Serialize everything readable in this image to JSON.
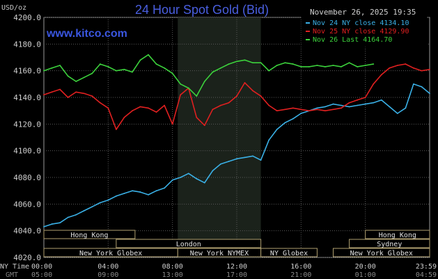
{
  "chart_data": {
    "type": "line",
    "title": "24 Hour Spot Gold (Bid)",
    "unit_label": "USD/oz",
    "watermark": "www.kitco.com",
    "timestamp": "November 26, 2025 19:35",
    "ylim": [
      4020,
      4200
    ],
    "yticks": [
      "4200.0",
      "4180.0",
      "4160.0",
      "4140.0",
      "4120.0",
      "4100.0",
      "4080.0",
      "4060.0",
      "4040.0",
      "4020.0"
    ],
    "xlim": [
      0,
      24
    ],
    "xticks": {
      "ny_label": "NY Time",
      "gmt_label": "GMT",
      "ny": [
        "00:00",
        "04:00",
        "08:00",
        "12:00",
        "16:00",
        "20:00",
        "23:59"
      ],
      "gmt": [
        "05:00",
        "09:00",
        "13:00",
        "17:00",
        "21:00",
        "01:00",
        "04:59"
      ]
    },
    "shaded_session_hours": [
      8.33,
      13.5
    ],
    "series": [
      {
        "name": "Nov 24 NY close 4134.10",
        "color": "#3ab0e6",
        "x": [
          0,
          0.5,
          1,
          1.5,
          2,
          2.5,
          3,
          3.5,
          4,
          4.5,
          5,
          5.5,
          6,
          6.5,
          7,
          7.5,
          8,
          8.5,
          9,
          9.5,
          10,
          10.5,
          11,
          11.5,
          12,
          12.5,
          13,
          13.5,
          14,
          14.5,
          15,
          15.5,
          16,
          16.5,
          17,
          17.5,
          18,
          18.5,
          19,
          19.5,
          20,
          20.5,
          21,
          21.5,
          22,
          22.5,
          23,
          23.5,
          24
        ],
        "y": [
          4043,
          4045,
          4046,
          4050,
          4052,
          4055,
          4058,
          4061,
          4063,
          4066,
          4068,
          4070,
          4069,
          4067,
          4070,
          4072,
          4078,
          4080,
          4083,
          4079,
          4076,
          4085,
          4090,
          4092,
          4094,
          4095,
          4096,
          4093,
          4108,
          4116,
          4121,
          4124,
          4128,
          4130,
          4132,
          4133,
          4135,
          4134,
          4133,
          4134,
          4135,
          4136,
          4138,
          4133,
          4128,
          4132,
          4150,
          4148,
          4143
        ]
      },
      {
        "name": "Nov 25 NY close 4129.90",
        "color": "#e02020",
        "x": [
          0,
          0.5,
          1,
          1.5,
          2,
          2.5,
          3,
          3.5,
          4,
          4.5,
          5,
          5.5,
          6,
          6.5,
          7,
          7.5,
          8,
          8.5,
          9,
          9.5,
          10,
          10.5,
          11,
          11.5,
          12,
          12.5,
          13,
          13.5,
          14,
          14.5,
          15,
          15.5,
          16,
          16.5,
          17,
          17.5,
          18,
          18.5,
          19,
          19.5,
          20,
          20.5,
          21,
          21.5,
          22,
          22.5,
          23,
          23.5,
          24
        ],
        "y": [
          4142,
          4144,
          4146,
          4140,
          4144,
          4143,
          4141,
          4136,
          4132,
          4116,
          4125,
          4130,
          4133,
          4132,
          4129,
          4134,
          4120,
          4142,
          4147,
          4125,
          4119,
          4131,
          4134,
          4136,
          4141,
          4151,
          4145,
          4141,
          4134,
          4130,
          4131,
          4132,
          4131,
          4130,
          4131,
          4130,
          4131,
          4132,
          4136,
          4138,
          4140,
          4150,
          4157,
          4162,
          4164,
          4165,
          4162,
          4160,
          4161
        ]
      },
      {
        "name": "Nov 26 Last 4164.70",
        "color": "#3cd23c",
        "x": [
          0,
          0.5,
          1,
          1.5,
          2,
          2.5,
          3,
          3.5,
          4,
          4.5,
          5,
          5.5,
          6,
          6.5,
          7,
          7.5,
          8,
          8.5,
          9,
          9.5,
          10,
          10.5,
          11,
          11.5,
          12,
          12.5,
          13,
          13.5,
          14,
          14.5,
          15,
          15.5,
          16,
          16.5,
          17,
          17.5,
          18,
          18.5,
          19,
          19.5,
          20,
          20.5
        ],
        "y": [
          4160,
          4162,
          4164,
          4156,
          4152,
          4155,
          4158,
          4165,
          4163,
          4160,
          4161,
          4159,
          4168,
          4172,
          4165,
          4162,
          4158,
          4150,
          4147,
          4141,
          4152,
          4159,
          4162,
          4165,
          4167,
          4168,
          4166,
          4166,
          4160,
          4164,
          4166,
          4165,
          4163,
          4163,
          4164,
          4163,
          4164,
          4163,
          4166,
          4163,
          4164,
          4165
        ]
      }
    ],
    "session_rows": [
      [
        {
          "label": "Hong Kong",
          "start": 0,
          "end": 5.67
        },
        {
          "label": "Hong Kong",
          "start": 20,
          "end": 24
        }
      ],
      [
        {
          "label": "London",
          "start": 4.5,
          "end": 13.5
        },
        {
          "label": "Sydney",
          "start": 19,
          "end": 24
        }
      ],
      [
        {
          "label": "New York Globex",
          "start": 0,
          "end": 8.33
        },
        {
          "label": "New York NYMEX",
          "start": 8.33,
          "end": 13.5
        },
        {
          "label": "NY Globex",
          "start": 13.5,
          "end": 17
        },
        {
          "label": "New York Globex",
          "start": 18,
          "end": 24
        }
      ]
    ]
  }
}
